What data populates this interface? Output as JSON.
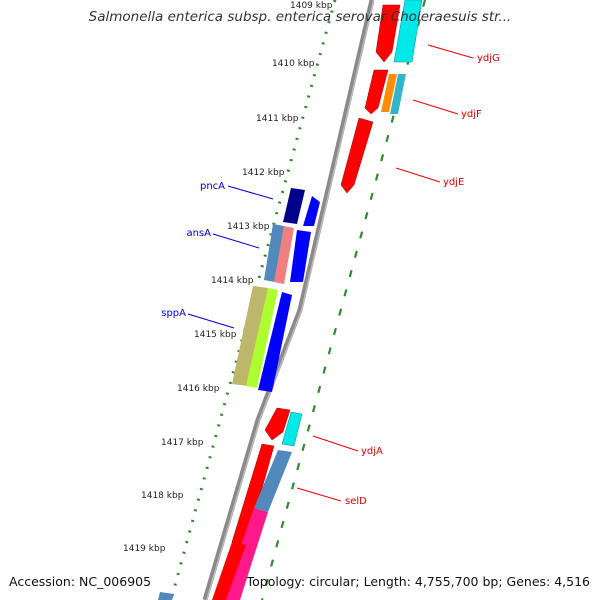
{
  "title": "Salmonella enterica subsp. enterica serovar Choleraesuis str...",
  "footer": {
    "accession": "Accession: NC_006905",
    "topology": "Topology: circular; Length: 4,755,700 bp; Genes: 4,516"
  },
  "colors": {
    "backbone": "#808080",
    "tick": "#2e8b2e",
    "forward_label": "#d40000",
    "reverse_label": "#0000cc"
  },
  "ticks": [
    "1409 kbp",
    "1410 kbp",
    "1411 kbp",
    "1412 kbp",
    "1413 kbp",
    "1414 kbp",
    "1415 kbp",
    "1416 kbp",
    "1417 kbp",
    "1418 kbp",
    "1419 kbp"
  ],
  "genes_forward": [
    {
      "name": "ydjG",
      "color": "#ff0000"
    },
    {
      "name": "ydjF",
      "color": "#ff0000"
    },
    {
      "name": "ydjE",
      "color": "#ff0000"
    },
    {
      "name": "ydjA",
      "color": "#ff0000"
    },
    {
      "name": "selD",
      "color": "#ff0000"
    }
  ],
  "genes_reverse": [
    {
      "name": "pncA",
      "color": "#0000ff"
    },
    {
      "name": "ansA",
      "color": "#0000ff"
    },
    {
      "name": "sppA",
      "color": "#0000ff"
    }
  ]
}
